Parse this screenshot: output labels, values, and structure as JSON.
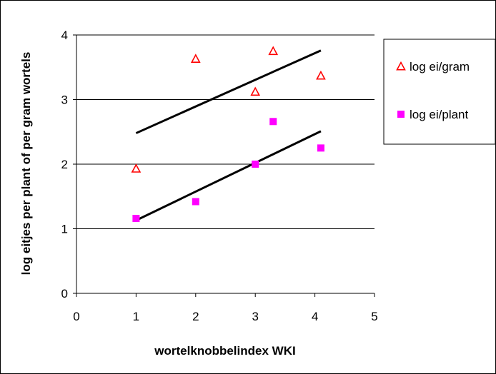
{
  "chart_data": {
    "type": "scatter",
    "xlabel": "wortelknobbelindex WKI",
    "ylabel": "log eitjes per plant of per gram wortels",
    "xlim": [
      0,
      5
    ],
    "ylim": [
      0,
      4
    ],
    "x_ticks": [
      "0",
      "1",
      "2",
      "3",
      "4",
      "5"
    ],
    "y_ticks": [
      "0",
      "1",
      "2",
      "3",
      "4"
    ],
    "grid": "horizontal",
    "legend_position": "right",
    "series": [
      {
        "name": "log ei/gram",
        "marker": "triangle-open",
        "color": "#ff0000",
        "x": [
          1.0,
          2.0,
          3.0,
          3.3,
          4.1
        ],
        "y": [
          1.93,
          3.63,
          3.12,
          3.75,
          3.37
        ],
        "trendline": {
          "x": [
            1.0,
            4.1
          ],
          "y": [
            2.48,
            3.76
          ]
        }
      },
      {
        "name": "log ei/plant",
        "marker": "square",
        "color": "#ff00ff",
        "x": [
          1.0,
          2.0,
          3.0,
          3.3,
          4.1
        ],
        "y": [
          1.16,
          1.42,
          2.0,
          2.66,
          2.25
        ],
        "trendline": {
          "x": [
            1.0,
            4.1
          ],
          "y": [
            1.13,
            2.51
          ]
        }
      }
    ]
  }
}
